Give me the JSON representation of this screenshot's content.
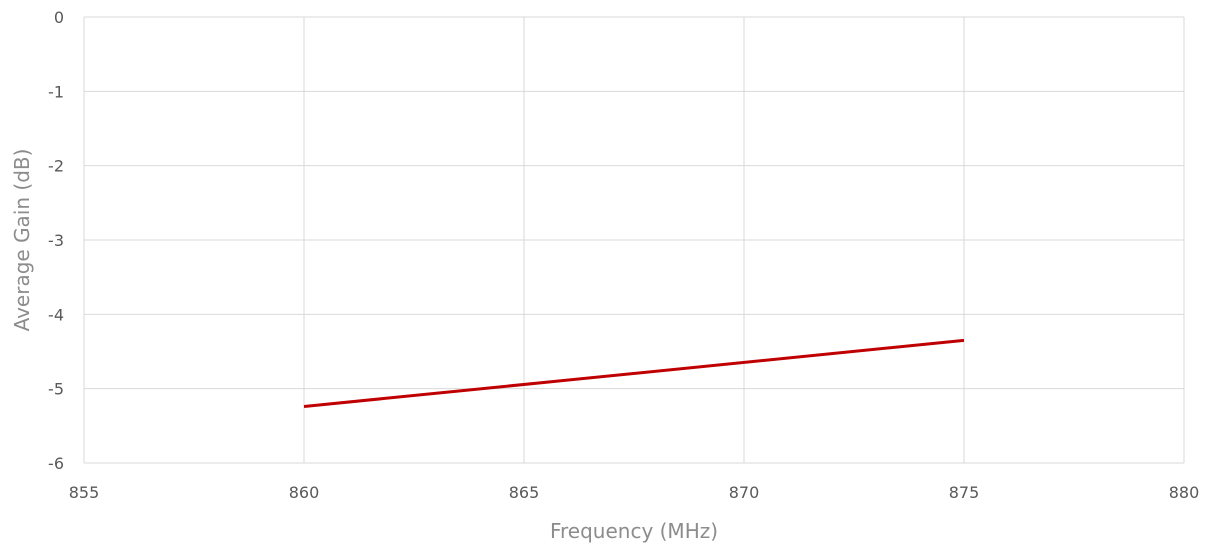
{
  "chart_data": {
    "type": "line",
    "title": "",
    "xlabel": "Frequency (MHz)",
    "ylabel": "Average Gain (dB)",
    "xlim": [
      855,
      880
    ],
    "ylim": [
      -6,
      0
    ],
    "x_ticks": [
      "855",
      "860",
      "865",
      "870",
      "875",
      "880"
    ],
    "y_ticks": [
      "0",
      "-1",
      "-2",
      "-3",
      "-4",
      "-5",
      "-6"
    ],
    "grid": true,
    "legend": "none",
    "series": [
      {
        "color": "#c00000",
        "x": [
          860,
          875
        ],
        "y": [
          -5.24,
          -4.35
        ]
      }
    ]
  }
}
